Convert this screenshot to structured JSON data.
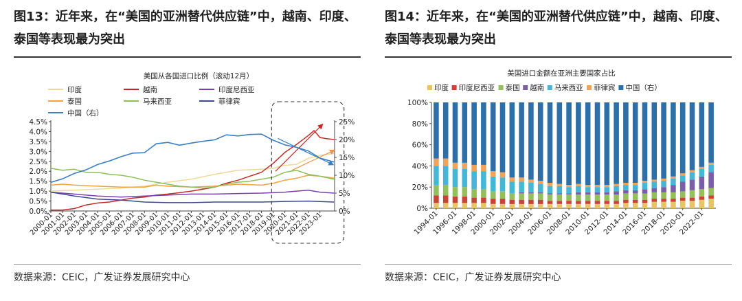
{
  "left": {
    "title": "图13：近年来，在“美国的亚洲替代供应链”中，越南、印度、泰国等表现最为突出",
    "source": "数据来源：CEIC，广发证券发展研究中心",
    "chart_data": {
      "type": "line",
      "title": "美国从各国进口比例（滚动12月）",
      "x_ticks": [
        "2000-01",
        "2001-01",
        "2002-01",
        "2003-01",
        "2004-01",
        "2005-01",
        "2006-01",
        "2007-01",
        "2008-01",
        "2009-01",
        "2010-01",
        "2011-01",
        "2012-01",
        "2013-01",
        "2014-01",
        "2015-01",
        "2016-01",
        "2017-01",
        "2018-01",
        "2019-01",
        "2020-01",
        "2021-01",
        "2022-01",
        "2023-01"
      ],
      "x_range": [
        2000.0,
        2024.25
      ],
      "y_left_ticks": [
        "0.0%",
        "0.5%",
        "1.0%",
        "1.5%",
        "2.0%",
        "2.5%",
        "3.0%",
        "3.5%",
        "4.0%",
        "4.5%"
      ],
      "y_left_range": [
        0,
        4.5
      ],
      "y_right_ticks": [
        "0%",
        "5%",
        "10%",
        "15%",
        "20%",
        "25%"
      ],
      "y_right_range": [
        0,
        25
      ],
      "grid": false,
      "legend_position": "top",
      "series": [
        {
          "name": "印度",
          "color": "#efd89a",
          "axis": "left",
          "points": [
            [
              2000,
              1.0
            ],
            [
              2002,
              1.05
            ],
            [
              2004,
              1.1
            ],
            [
              2006,
              1.15
            ],
            [
              2008,
              1.25
            ],
            [
              2010,
              1.45
            ],
            [
              2012,
              1.6
            ],
            [
              2014,
              1.85
            ],
            [
              2016,
              2.05
            ],
            [
              2018,
              2.1
            ],
            [
              2019,
              2.15
            ],
            [
              2020,
              2.3
            ],
            [
              2021,
              2.35
            ],
            [
              2022,
              2.65
            ],
            [
              2023,
              2.8
            ],
            [
              2024.2,
              2.9
            ]
          ]
        },
        {
          "name": "越南",
          "color": "#c42a24",
          "axis": "left",
          "points": [
            [
              2000,
              0.05
            ],
            [
              2001,
              0.05
            ],
            [
              2002,
              0.12
            ],
            [
              2003,
              0.3
            ],
            [
              2004,
              0.4
            ],
            [
              2005,
              0.45
            ],
            [
              2006,
              0.55
            ],
            [
              2007,
              0.65
            ],
            [
              2008,
              0.7
            ],
            [
              2009,
              0.8
            ],
            [
              2010,
              0.85
            ],
            [
              2011,
              0.92
            ],
            [
              2012,
              1.0
            ],
            [
              2013,
              1.1
            ],
            [
              2014,
              1.2
            ],
            [
              2015,
              1.4
            ],
            [
              2016,
              1.55
            ],
            [
              2017,
              1.75
            ],
            [
              2018,
              1.95
            ],
            [
              2019,
              2.4
            ],
            [
              2020,
              2.95
            ],
            [
              2021,
              3.35
            ],
            [
              2022,
              3.8
            ],
            [
              2022.5,
              4.05
            ],
            [
              2023,
              3.7
            ],
            [
              2023.5,
              3.65
            ],
            [
              2024.2,
              3.6
            ]
          ]
        },
        {
          "name": "印度尼西亚",
          "color": "#7b3fb0",
          "axis": "left",
          "points": [
            [
              2000,
              0.95
            ],
            [
              2002,
              0.85
            ],
            [
              2004,
              0.75
            ],
            [
              2006,
              0.7
            ],
            [
              2008,
              0.75
            ],
            [
              2010,
              0.8
            ],
            [
              2012,
              0.85
            ],
            [
              2014,
              0.85
            ],
            [
              2016,
              0.88
            ],
            [
              2018,
              0.9
            ],
            [
              2020,
              0.95
            ],
            [
              2021,
              1.0
            ],
            [
              2022,
              1.05
            ],
            [
              2023,
              0.95
            ],
            [
              2024.2,
              0.9
            ]
          ]
        },
        {
          "name": "泰国",
          "color": "#f0a23c",
          "axis": "left",
          "points": [
            [
              2000,
              1.3
            ],
            [
              2001,
              1.35
            ],
            [
              2002,
              1.3
            ],
            [
              2004,
              1.25
            ],
            [
              2006,
              1.2
            ],
            [
              2008,
              1.2
            ],
            [
              2009,
              1.3
            ],
            [
              2010,
              1.25
            ],
            [
              2012,
              1.2
            ],
            [
              2014,
              1.25
            ],
            [
              2016,
              1.35
            ],
            [
              2018,
              1.3
            ],
            [
              2019,
              1.4
            ],
            [
              2020,
              1.55
            ],
            [
              2021,
              1.65
            ],
            [
              2022,
              1.8
            ],
            [
              2023,
              1.75
            ],
            [
              2024.2,
              1.65
            ]
          ]
        },
        {
          "name": "马来西亚",
          "color": "#8dbf5b",
          "axis": "left",
          "points": [
            [
              2000,
              2.15
            ],
            [
              2001,
              2.05
            ],
            [
              2002,
              2.1
            ],
            [
              2003,
              1.95
            ],
            [
              2004,
              1.95
            ],
            [
              2005,
              1.85
            ],
            [
              2006,
              1.8
            ],
            [
              2007,
              1.7
            ],
            [
              2008,
              1.55
            ],
            [
              2009,
              1.45
            ],
            [
              2010,
              1.35
            ],
            [
              2011,
              1.25
            ],
            [
              2012,
              1.2
            ],
            [
              2013,
              1.15
            ],
            [
              2014,
              1.2
            ],
            [
              2015,
              1.35
            ],
            [
              2016,
              1.45
            ],
            [
              2017,
              1.5
            ],
            [
              2018,
              1.6
            ],
            [
              2019,
              1.7
            ],
            [
              2020,
              1.95
            ],
            [
              2021,
              2.05
            ],
            [
              2022,
              1.85
            ],
            [
              2023,
              1.75
            ],
            [
              2024.2,
              1.6
            ]
          ]
        },
        {
          "name": "菲律宾",
          "color": "#3a4a8c",
          "axis": "left",
          "points": [
            [
              2000,
              0.95
            ],
            [
              2001,
              0.85
            ],
            [
              2002,
              0.75
            ],
            [
              2004,
              0.6
            ],
            [
              2006,
              0.55
            ],
            [
              2008,
              0.45
            ],
            [
              2010,
              0.42
            ],
            [
              2012,
              0.42
            ],
            [
              2014,
              0.45
            ],
            [
              2016,
              0.45
            ],
            [
              2018,
              0.45
            ],
            [
              2020,
              0.48
            ],
            [
              2022,
              0.5
            ],
            [
              2024.2,
              0.45
            ]
          ]
        },
        {
          "name": "中国（右）",
          "color": "#3b7fbf",
          "axis": "right",
          "points": [
            [
              2000,
              8.0
            ],
            [
              2001,
              9.0
            ],
            [
              2002,
              10.5
            ],
            [
              2003,
              11.5
            ],
            [
              2004,
              13.0
            ],
            [
              2005,
              14.0
            ],
            [
              2006,
              15.2
            ],
            [
              2007,
              16.2
            ],
            [
              2008,
              16.3
            ],
            [
              2009,
              18.8
            ],
            [
              2010,
              19.2
            ],
            [
              2011,
              18.4
            ],
            [
              2012,
              19.0
            ],
            [
              2013,
              19.5
            ],
            [
              2014,
              19.9
            ],
            [
              2015,
              21.3
            ],
            [
              2016,
              21.0
            ],
            [
              2017,
              21.4
            ],
            [
              2018,
              21.5
            ],
            [
              2019,
              19.8
            ],
            [
              2020,
              18.5
            ],
            [
              2021,
              17.8
            ],
            [
              2022,
              16.8
            ],
            [
              2023,
              14.8
            ],
            [
              2024.2,
              13.7
            ]
          ]
        }
      ],
      "annotations": [
        {
          "type": "dashed-box",
          "x_from": 2019.1,
          "x_to": 2024.35
        },
        {
          "type": "arrow",
          "color": "#c42a24"
        },
        {
          "type": "arrow",
          "color": "#e8944a"
        },
        {
          "type": "arrow",
          "color": "#3b7fbf"
        }
      ]
    }
  },
  "right": {
    "title": "图14：近年来，在“美国的亚洲替代供应链”中，越南、印度、泰国等表现最为突出",
    "source": "数据来源：CEIC，广发证券发展研究中心",
    "chart_data": {
      "type": "bar",
      "stacked": true,
      "percent": true,
      "title": "美国进口金额在亚洲主要国家占比",
      "y_ticks": [
        "0%",
        "20%",
        "40%",
        "60%",
        "80%",
        "100%"
      ],
      "y_range": [
        0,
        100
      ],
      "x_ticks": [
        "1994-01",
        "1996-01",
        "1998-01",
        "2000-01",
        "2002-01",
        "2004-01",
        "2006-01",
        "2008-01",
        "2010-01",
        "2012-01",
        "2014-01",
        "2016-01",
        "2018-01",
        "2020-01",
        "2022-01"
      ],
      "legend_position": "top",
      "series_names": [
        "印度",
        "印度尼西亚",
        "泰国",
        "越南",
        "马来西亚",
        "菲律宾",
        "中国（右）"
      ],
      "series_colors": [
        "#e8c466",
        "#c8443a",
        "#93bf5c",
        "#7a5fa8",
        "#46b6d6",
        "#f0a35a",
        "#2f6fa8"
      ],
      "years": [
        1994,
        1995,
        1996,
        1997,
        1998,
        1999,
        2000,
        2001,
        2002,
        2003,
        2004,
        2005,
        2006,
        2007,
        2008,
        2009,
        2010,
        2011,
        2012,
        2013,
        2014,
        2015,
        2016,
        2017,
        2018,
        2019,
        2020,
        2021,
        2022,
        2023
      ],
      "values": [
        [
          5,
          7,
          10,
          0,
          18,
          7,
          53
        ],
        [
          5,
          7,
          10,
          0,
          18,
          7,
          53
        ],
        [
          5,
          6,
          9,
          0,
          17,
          6,
          57
        ],
        [
          5,
          6,
          9,
          0,
          17,
          6,
          57
        ],
        [
          5,
          5,
          8,
          0,
          17,
          6,
          59
        ],
        [
          5,
          5,
          8,
          0,
          17,
          6,
          59
        ],
        [
          4,
          5,
          7,
          0,
          14,
          5,
          65
        ],
        [
          4,
          5,
          7,
          0,
          13,
          5,
          66
        ],
        [
          4,
          4,
          6,
          0,
          11,
          4,
          71
        ],
        [
          4,
          4,
          6,
          1,
          10,
          4,
          71
        ],
        [
          4,
          4,
          6,
          1,
          9,
          3,
          73
        ],
        [
          4,
          4,
          6,
          1,
          8,
          3,
          74
        ],
        [
          4,
          3,
          6,
          1,
          7,
          3,
          76
        ],
        [
          4,
          3,
          6,
          1,
          7,
          2,
          77
        ],
        [
          4,
          3,
          6,
          1,
          6,
          2,
          78
        ],
        [
          4,
          3,
          6,
          2,
          6,
          2,
          77
        ],
        [
          4,
          3,
          6,
          2,
          5,
          2,
          78
        ],
        [
          4,
          3,
          6,
          2,
          5,
          2,
          78
        ],
        [
          4,
          3,
          6,
          2,
          5,
          2,
          78
        ],
        [
          4,
          3,
          6,
          3,
          5,
          2,
          77
        ],
        [
          5,
          3,
          6,
          3,
          5,
          2,
          76
        ],
        [
          5,
          3,
          6,
          3,
          5,
          2,
          76
        ],
        [
          5,
          3,
          6,
          4,
          6,
          2,
          74
        ],
        [
          6,
          3,
          6,
          4,
          6,
          2,
          73
        ],
        [
          6,
          3,
          6,
          5,
          6,
          2,
          72
        ],
        [
          6,
          3,
          6,
          7,
          6,
          2,
          70
        ],
        [
          7,
          3,
          6,
          9,
          6,
          2,
          67
        ],
        [
          7,
          3,
          7,
          10,
          7,
          2,
          64
        ],
        [
          8,
          3,
          7,
          12,
          7,
          2,
          61
        ],
        [
          9,
          3,
          7,
          15,
          7,
          2,
          57
        ]
      ]
    }
  }
}
